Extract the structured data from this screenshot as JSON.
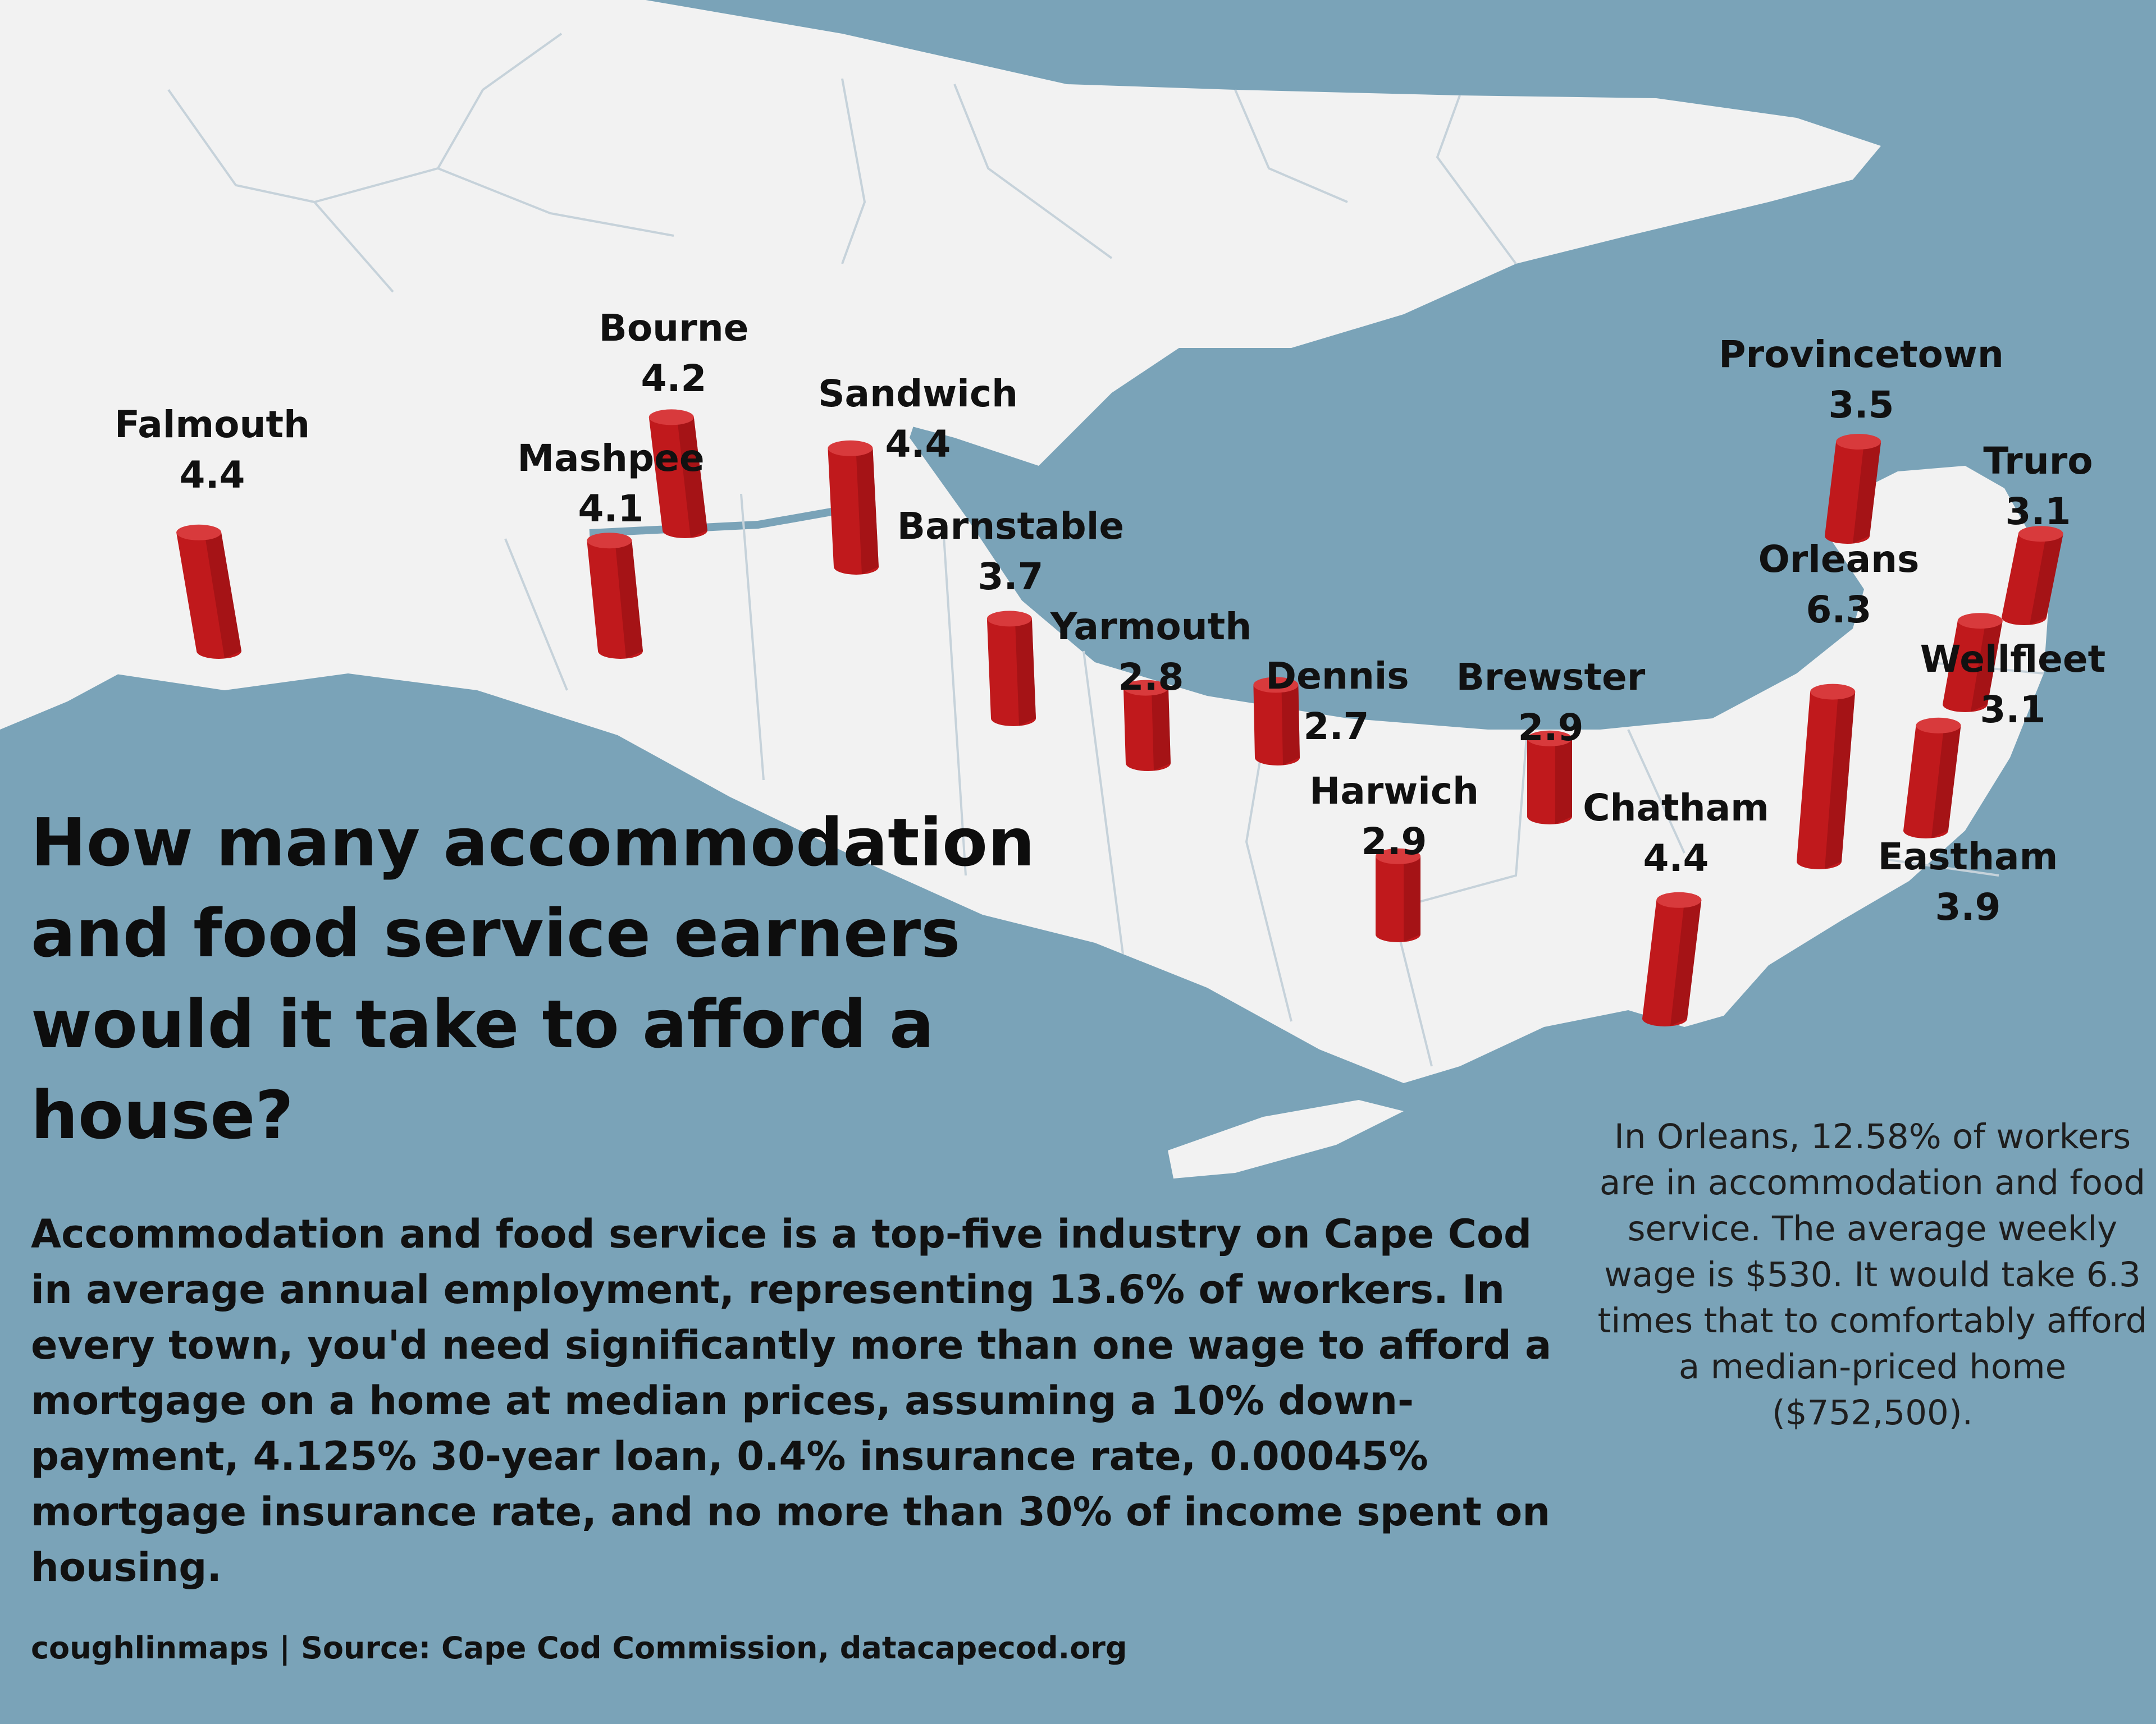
{
  "title": "How many accommodation and food service earners would it take to afford a house?",
  "body": "Accommodation and food service is a top-five industry on Cape Cod in average annual employment, representing 13.6% of workers. In every town, you'd need significantly more than one wage to afford a mortgage on a home at median prices, assuming a 10% down-payment, 4.125% 30-year loan, 0.4% insurance rate, 0.00045% mortgage insurance rate, and no more than 30% of income spent on housing.",
  "note": "In Orleans, 12.58% of workers are in accommodation and food service. The average weekly wage is $530. It would take 6.3 times that to comfortably afford a median-priced home ($752,500).",
  "credit": "coughlinmaps | Source: Cape Cod Commission, datacapecod.org",
  "colors": {
    "water": "#7aa3b8",
    "land": "#f2f2f2",
    "bar": "#c0191c",
    "bar_shade": "#8e0e12"
  },
  "towns": [
    {
      "name": "Falmouth",
      "value": 4.4
    },
    {
      "name": "Bourne",
      "value": 4.2
    },
    {
      "name": "Mashpee",
      "value": 4.1
    },
    {
      "name": "Sandwich",
      "value": 4.4
    },
    {
      "name": "Barnstable",
      "value": 3.7
    },
    {
      "name": "Yarmouth",
      "value": 2.8
    },
    {
      "name": "Dennis",
      "value": 2.7
    },
    {
      "name": "Brewster",
      "value": 2.9
    },
    {
      "name": "Harwich",
      "value": 2.9
    },
    {
      "name": "Chatham",
      "value": 4.4
    },
    {
      "name": "Provincetown",
      "value": 3.5
    },
    {
      "name": "Truro",
      "value": 3.1
    },
    {
      "name": "Orleans",
      "value": 6.3
    },
    {
      "name": "Wellfleet",
      "value": 3.1
    },
    {
      "name": "Eastham",
      "value": 3.9
    }
  ]
}
